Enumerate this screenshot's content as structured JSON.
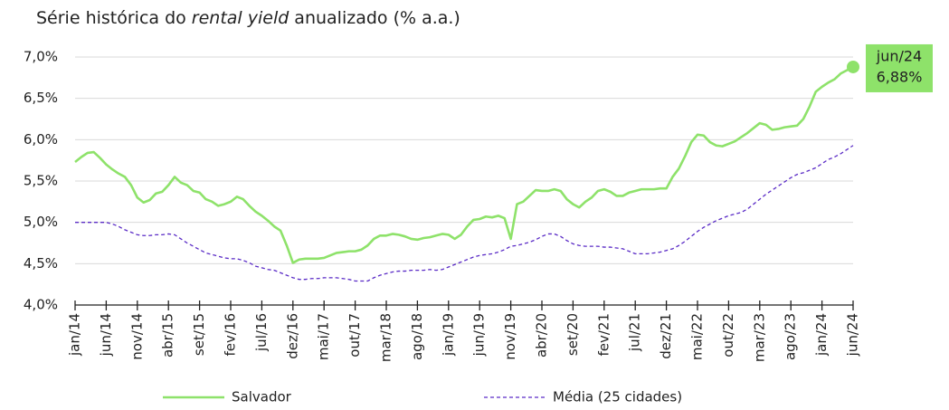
{
  "chart_data": {
    "type": "line",
    "title": [
      "Série histórica do",
      "rental yield",
      "anualizado (% a.a.)"
    ],
    "categories": [
      "jan/14",
      null,
      null,
      null,
      null,
      "jun/14",
      null,
      null,
      null,
      null,
      "nov/14",
      null,
      null,
      null,
      null,
      "abr/15",
      null,
      null,
      null,
      null,
      "set/15",
      null,
      null,
      null,
      null,
      "fev/16",
      null,
      null,
      null,
      null,
      "jul/16",
      null,
      null,
      null,
      null,
      "dez/16",
      null,
      null,
      null,
      null,
      "mai/17",
      null,
      null,
      null,
      null,
      "out/17",
      null,
      null,
      null,
      null,
      "mar/18",
      null,
      null,
      null,
      null,
      "ago/18",
      null,
      null,
      null,
      null,
      "jan/19",
      null,
      null,
      null,
      null,
      "jun/19",
      null,
      null,
      null,
      null,
      "nov/19",
      null,
      null,
      null,
      null,
      "abr/20",
      null,
      null,
      null,
      null,
      "set/20",
      null,
      null,
      null,
      null,
      "fev/21",
      null,
      null,
      null,
      null,
      "jul/21",
      null,
      null,
      null,
      null,
      "dez/21",
      null,
      null,
      null,
      null,
      "mai/22",
      null,
      null,
      null,
      null,
      "out/22",
      null,
      null,
      null,
      null,
      "mar/23",
      null,
      null,
      null,
      null,
      "ago/23",
      null,
      null,
      null,
      null,
      "jan/24",
      null,
      null,
      null,
      null,
      "jun/24"
    ],
    "series": [
      {
        "name": "Salvador",
        "color": "#8ee26a",
        "dash": false,
        "values": [
          5.73,
          5.79,
          5.84,
          5.85,
          5.78,
          5.7,
          5.64,
          5.59,
          5.55,
          5.45,
          5.3,
          5.24,
          5.27,
          5.35,
          5.37,
          5.45,
          5.55,
          5.48,
          5.45,
          5.38,
          5.36,
          5.28,
          5.25,
          5.2,
          5.22,
          5.25,
          5.31,
          5.28,
          5.2,
          5.13,
          5.08,
          5.02,
          4.95,
          4.9,
          4.72,
          4.51,
          4.55,
          4.56,
          4.56,
          4.56,
          4.57,
          4.6,
          4.63,
          4.64,
          4.65,
          4.65,
          4.67,
          4.72,
          4.8,
          4.84,
          4.84,
          4.86,
          4.85,
          4.83,
          4.8,
          4.79,
          4.81,
          4.82,
          4.84,
          4.86,
          4.85,
          4.8,
          4.85,
          4.95,
          5.03,
          5.04,
          5.07,
          5.06,
          5.08,
          5.05,
          4.8,
          5.22,
          5.25,
          5.32,
          5.39,
          5.38,
          5.38,
          5.4,
          5.38,
          5.28,
          5.22,
          5.18,
          5.25,
          5.3,
          5.38,
          5.4,
          5.37,
          5.32,
          5.32,
          5.36,
          5.38,
          5.4,
          5.4,
          5.4,
          5.41,
          5.41,
          5.55,
          5.65,
          5.8,
          5.97,
          6.06,
          6.05,
          5.97,
          5.93,
          5.92,
          5.95,
          5.98,
          6.03,
          6.08,
          6.14,
          6.2,
          6.18,
          6.12,
          6.13,
          6.15,
          6.16,
          6.17,
          6.25,
          6.4,
          6.58,
          6.64,
          6.69,
          6.73,
          6.8,
          6.84,
          6.88
        ],
        "value_labels": [
          null,
          null,
          null,
          null,
          null,
          null,
          null,
          null,
          null,
          null,
          null,
          null,
          null,
          null,
          null,
          null,
          null,
          null,
          null,
          null,
          null,
          null,
          null,
          null,
          null,
          null,
          null,
          null,
          null,
          null,
          null,
          null,
          null,
          null,
          null,
          null,
          null,
          null,
          null,
          null,
          null,
          null,
          null,
          null,
          null,
          null,
          null,
          null,
          null,
          null,
          null,
          null,
          null,
          null,
          null,
          null,
          null,
          null,
          null,
          null,
          null,
          null,
          null,
          null,
          null,
          null,
          null,
          null,
          null,
          null,
          null,
          null,
          null,
          null,
          null,
          null,
          null,
          null,
          null,
          null,
          null,
          null,
          null,
          null,
          null,
          null,
          null,
          null,
          null,
          null,
          null,
          null,
          null,
          null,
          null,
          null,
          null,
          null,
          null,
          null,
          null,
          null,
          null,
          null,
          null,
          null,
          null,
          null,
          null,
          null,
          null,
          null,
          null,
          null,
          null,
          null,
          null,
          null,
          null,
          null,
          null,
          null,
          null,
          null,
          null,
          "6,88%"
        ]
      },
      {
        "name": "Média (25 cidades)",
        "color": "#5a2bc6",
        "dash": true,
        "values": [
          5.0,
          5.0,
          5.0,
          5.0,
          5.0,
          5.0,
          4.98,
          4.95,
          4.91,
          4.88,
          4.85,
          4.84,
          4.84,
          4.85,
          4.85,
          4.86,
          4.85,
          4.8,
          4.75,
          4.71,
          4.67,
          4.63,
          4.61,
          4.59,
          4.57,
          4.56,
          4.56,
          4.54,
          4.51,
          4.47,
          4.45,
          4.43,
          4.42,
          4.39,
          4.36,
          4.33,
          4.31,
          4.31,
          4.32,
          4.32,
          4.33,
          4.33,
          4.33,
          4.32,
          4.31,
          4.29,
          4.29,
          4.29,
          4.33,
          4.36,
          4.38,
          4.4,
          4.41,
          4.41,
          4.42,
          4.42,
          4.42,
          4.43,
          4.42,
          4.43,
          4.46,
          4.49,
          4.52,
          4.55,
          4.58,
          4.6,
          4.61,
          4.62,
          4.64,
          4.67,
          4.71,
          4.72,
          4.74,
          4.76,
          4.79,
          4.83,
          4.86,
          4.86,
          4.83,
          4.78,
          4.74,
          4.72,
          4.71,
          4.71,
          4.71,
          4.7,
          4.7,
          4.69,
          4.68,
          4.65,
          4.62,
          4.62,
          4.62,
          4.63,
          4.64,
          4.66,
          4.68,
          4.72,
          4.77,
          4.83,
          4.89,
          4.94,
          4.98,
          5.02,
          5.05,
          5.08,
          5.1,
          5.12,
          5.16,
          5.22,
          5.28,
          5.34,
          5.39,
          5.44,
          5.49,
          5.54,
          5.58,
          5.6,
          5.63,
          5.66,
          5.71,
          5.76,
          5.79,
          5.83,
          5.88,
          5.93
        ]
      }
    ],
    "ylim": [
      4.0,
      7.0
    ],
    "yticks": [
      {
        "value": 4.0,
        "label": "4,0%"
      },
      {
        "value": 4.5,
        "label": "4,5%"
      },
      {
        "value": 5.0,
        "label": "5,0%"
      },
      {
        "value": 5.5,
        "label": "5,5%"
      },
      {
        "value": 6.0,
        "label": "6,0%"
      },
      {
        "value": 6.5,
        "label": "6,5%"
      },
      {
        "value": 7.0,
        "label": "7,0%"
      }
    ],
    "grid": true
  }
}
